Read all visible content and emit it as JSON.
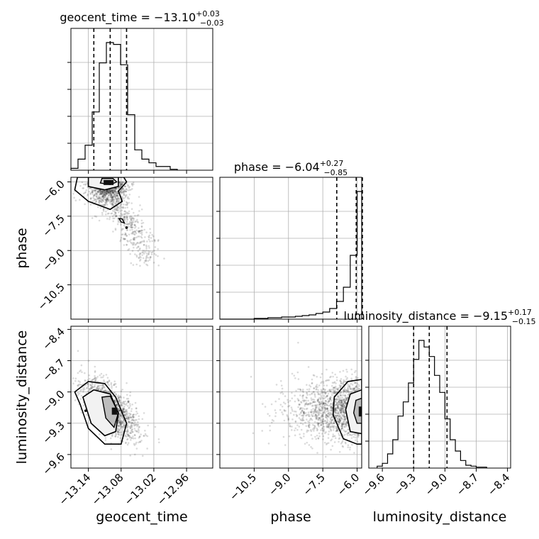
{
  "chart_data": {
    "type": "corner",
    "parameters": [
      "geocent_time",
      "phase",
      "luminosity_distance"
    ],
    "axis_labels": {
      "geocent_time": "geocent_time",
      "phase": "phase",
      "luminosity_distance": "luminosity_distance"
    },
    "ticks": {
      "geocent_time": [
        "−13.14",
        "−13.08",
        "−13.02",
        "−12.96"
      ],
      "phase": [
        "−10.5",
        "−9.0",
        "−7.5",
        "−6.0"
      ],
      "luminosity_distance": [
        "−9.6",
        "−9.3",
        "−9.0",
        "−8.7",
        "−8.4"
      ]
    },
    "tick_values": {
      "geocent_time": [
        -13.14,
        -13.08,
        -13.02,
        -12.96
      ],
      "phase": [
        -10.5,
        -9.0,
        -7.5,
        -6.0
      ],
      "luminosity_distance": [
        -9.6,
        -9.3,
        -9.0,
        -8.7,
        -8.4
      ]
    },
    "ranges": {
      "geocent_time": [
        -13.172,
        -12.912
      ],
      "phase": [
        -12.0,
        -5.8
      ],
      "luminosity_distance": [
        -9.73,
        -8.37
      ]
    },
    "titles": {
      "geocent_time": {
        "prefix": "geocent_time = −13.10",
        "plus": "+0.03",
        "minus": "−0.03"
      },
      "phase": {
        "prefix": "phase = −6.04",
        "plus": "+0.27",
        "minus": "−0.85"
      },
      "luminosity_distance": {
        "prefix": "luminosity_distance = −9.15",
        "plus": "+0.17",
        "minus": "−0.15"
      }
    },
    "quantiles": {
      "geocent_time": [
        -13.13,
        -13.1,
        -13.07
      ],
      "phase": [
        -6.89,
        -6.04,
        -5.77
      ],
      "luminosity_distance": [
        -9.3,
        -9.15,
        -8.98
      ]
    },
    "histograms": {
      "geocent_time": {
        "edges": [
          -13.172,
          -13.159,
          -13.146,
          -13.133,
          -13.12,
          -13.107,
          -13.094,
          -13.081,
          -13.068,
          -13.055,
          -13.042,
          -13.029,
          -13.016,
          -13.003,
          -12.99,
          -12.977
        ],
        "counts": [
          2,
          12,
          27,
          63,
          116,
          138,
          136,
          114,
          60,
          22,
          12,
          8,
          4,
          4,
          1
        ]
      },
      "phase": {
        "edges": [
          -12.0,
          -11.7,
          -11.4,
          -11.1,
          -10.8,
          -10.5,
          -10.2,
          -9.9,
          -9.6,
          -9.3,
          -9.0,
          -8.7,
          -8.4,
          -8.1,
          -7.8,
          -7.5,
          -7.2,
          -6.9,
          -6.6,
          -6.3,
          -6.0,
          -5.8
        ],
        "counts": [
          0,
          0,
          0,
          0,
          0,
          1,
          1,
          2,
          2,
          3,
          3,
          4,
          5,
          6,
          8,
          10,
          15,
          25,
          45,
          90,
          180
        ]
      },
      "luminosity_distance": {
        "edges": [
          -9.65,
          -9.6,
          -9.55,
          -9.5,
          -9.45,
          -9.4,
          -9.35,
          -9.3,
          -9.25,
          -9.2,
          -9.15,
          -9.1,
          -9.05,
          -9.0,
          -8.95,
          -8.9,
          -8.85,
          -8.8,
          -8.75,
          -8.7,
          -8.65,
          -8.6
        ],
        "counts": [
          2,
          5,
          15,
          30,
          55,
          70,
          90,
          115,
          135,
          128,
          118,
          98,
          80,
          52,
          30,
          18,
          8,
          3,
          2,
          1,
          1
        ]
      }
    },
    "peaks_2d": {
      "phase_vs_geocent_time": {
        "x": -13.1,
        "y": -6.0
      },
      "luminosity_distance_vs_geocent_time": {
        "x": -13.09,
        "y": -9.18
      },
      "luminosity_distance_vs_phase": {
        "x": -5.92,
        "y": -9.18
      }
    },
    "grid": true
  }
}
